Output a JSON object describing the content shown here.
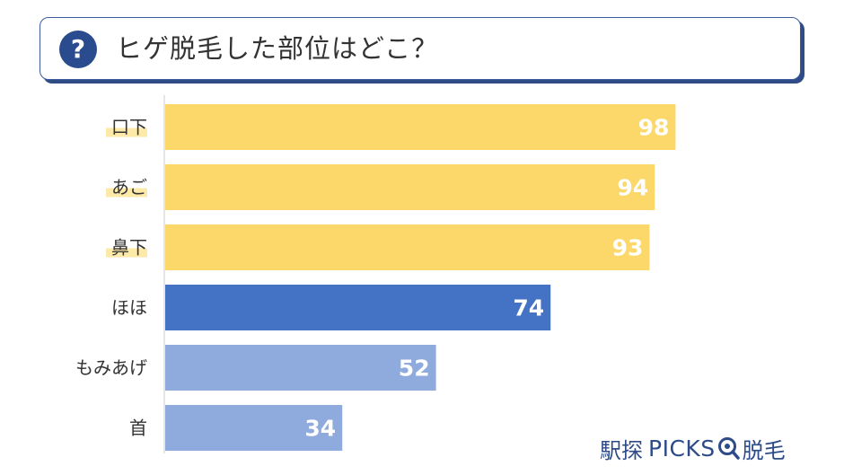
{
  "title": {
    "icon": "question-mark-icon",
    "icon_glyph": "?",
    "text": "ヒゲ脱毛した部位はどこ？"
  },
  "colors": {
    "highlight": "#fbd869",
    "primary": "#4472c4",
    "secondary": "#8faadc",
    "label_highlight": "#fde9a8",
    "axis": "#cccccc"
  },
  "chart_data": {
    "type": "bar",
    "orientation": "horizontal",
    "categories": [
      "口下",
      "あご",
      "鼻下",
      "ほほ",
      "もみあげ",
      "首"
    ],
    "values": [
      98,
      94,
      93,
      74,
      52,
      34
    ],
    "bar_colors": [
      "#fbd869",
      "#fbd869",
      "#fbd869",
      "#4472c4",
      "#8faadc",
      "#8faadc"
    ],
    "highlighted_labels": [
      true,
      true,
      true,
      false,
      false,
      false
    ],
    "data_labels": true,
    "xlim": [
      0,
      100
    ],
    "title": "",
    "xlabel": "",
    "ylabel": "",
    "grid": false
  },
  "brand": {
    "kanji": "駅探",
    "latin": "PICKS",
    "suffix": "脱毛",
    "icon": "magnifier-icon"
  }
}
